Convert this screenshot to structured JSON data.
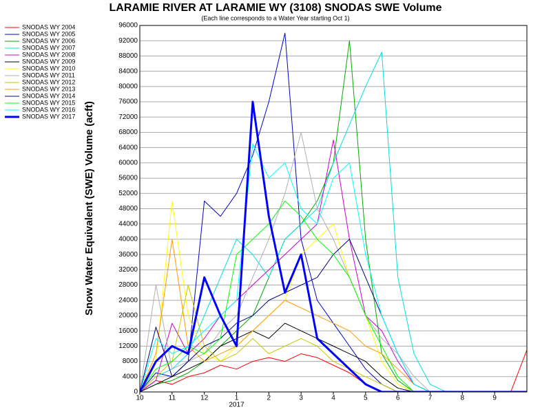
{
  "chart_data": {
    "type": "line",
    "title": "LARAMIE RIVER AT LARAMIE WY (3108) SNODAS SWE Volume",
    "subtitle": "(Each line corresponds to a Water Year starting Oct 1)",
    "y_label": "Snow Water Equivalent (SWE) Volume (acft)",
    "x_year_label": "2017",
    "grid": true,
    "xlim": [
      0,
      12
    ],
    "ylim": [
      0,
      96000
    ],
    "xticks": [
      {
        "value": 0,
        "label": "10"
      },
      {
        "value": 1,
        "label": "11"
      },
      {
        "value": 2,
        "label": "12"
      },
      {
        "value": 3,
        "label": "1"
      },
      {
        "value": 4,
        "label": "2"
      },
      {
        "value": 5,
        "label": "3"
      },
      {
        "value": 6,
        "label": "4"
      },
      {
        "value": 7,
        "label": "5"
      },
      {
        "value": 8,
        "label": "6"
      },
      {
        "value": 9,
        "label": "7"
      },
      {
        "value": 10,
        "label": "8"
      },
      {
        "value": 11,
        "label": "9"
      }
    ],
    "yticks": [
      0,
      4000,
      8000,
      12000,
      16000,
      20000,
      24000,
      28000,
      32000,
      36000,
      40000,
      44000,
      48000,
      52000,
      56000,
      60000,
      64000,
      68000,
      72000,
      76000,
      80000,
      84000,
      88000,
      92000,
      96000
    ],
    "x": [
      0,
      0.5,
      1,
      1.5,
      2,
      2.5,
      3,
      3.5,
      4,
      4.5,
      5,
      5.5,
      6,
      6.5,
      7,
      7.5,
      8,
      8.5,
      9,
      9.5,
      10,
      10.5,
      11,
      11.5,
      12
    ],
    "series": [
      {
        "name": "SNODAS WY 2004",
        "color": "#ff0000",
        "width": 1,
        "values": [
          0,
          3000,
          2000,
          4000,
          5000,
          7000,
          6000,
          8000,
          9000,
          8000,
          10000,
          9000,
          7000,
          5000,
          2000,
          0,
          0,
          0,
          0,
          0,
          0,
          0,
          0,
          0,
          11000
        ]
      },
      {
        "name": "SNODAS WY 2005",
        "color": "#0000cc",
        "width": 1,
        "values": [
          0,
          5000,
          4000,
          8000,
          50000,
          46000,
          52000,
          62000,
          76000,
          94000,
          40000,
          24000,
          18000,
          12000,
          6000,
          2000,
          0,
          0,
          0,
          0,
          0,
          0,
          0,
          0,
          0
        ]
      },
      {
        "name": "SNODAS WY 2006",
        "color": "#00aa00",
        "width": 1,
        "values": [
          0,
          2000,
          3000,
          5000,
          8000,
          12000,
          16000,
          20000,
          30000,
          40000,
          44000,
          50000,
          60000,
          92000,
          40000,
          10000,
          3000,
          0,
          0,
          0,
          0,
          0,
          0,
          0,
          0
        ]
      },
      {
        "name": "SNODAS WY 2007",
        "color": "#00e0e0",
        "width": 1,
        "values": [
          0,
          4000,
          6000,
          10000,
          20000,
          30000,
          40000,
          36000,
          30000,
          40000,
          44000,
          48000,
          60000,
          70000,
          80000,
          89000,
          30000,
          10000,
          2000,
          0,
          0,
          0,
          0,
          0,
          0
        ]
      },
      {
        "name": "SNODAS WY 2008",
        "color": "#cc00cc",
        "width": 1,
        "values": [
          0,
          3000,
          18000,
          10000,
          14000,
          20000,
          24000,
          28000,
          32000,
          36000,
          40000,
          44000,
          66000,
          40000,
          20000,
          16000,
          8000,
          2000,
          0,
          0,
          0,
          0,
          0,
          0,
          0
        ]
      },
      {
        "name": "SNODAS WY 2009",
        "color": "#000000",
        "width": 1,
        "values": [
          0,
          2000,
          4000,
          6000,
          8000,
          12000,
          14000,
          16000,
          14000,
          18000,
          16000,
          14000,
          12000,
          10000,
          8000,
          4000,
          1000,
          0,
          0,
          0,
          0,
          0,
          0,
          0,
          0
        ]
      },
      {
        "name": "SNODAS WY 2010",
        "color": "#ffff00",
        "width": 1,
        "values": [
          0,
          8000,
          50000,
          20000,
          10000,
          8000,
          12000,
          16000,
          20000,
          24000,
          36000,
          40000,
          44000,
          30000,
          20000,
          8000,
          2000,
          0,
          0,
          0,
          0,
          0,
          0,
          0,
          0
        ]
      },
      {
        "name": "SNODAS WY 2011",
        "color": "#b0b0b0",
        "width": 1,
        "values": [
          0,
          28000,
          6000,
          8000,
          10000,
          16000,
          20000,
          30000,
          40000,
          52000,
          68000,
          48000,
          40000,
          30000,
          20000,
          14000,
          10000,
          4000,
          0,
          0,
          0,
          0,
          0,
          0,
          0
        ]
      },
      {
        "name": "SNODAS WY 2012",
        "color": "#c8c800",
        "width": 1,
        "values": [
          0,
          4000,
          8000,
          28000,
          12000,
          8000,
          10000,
          14000,
          10000,
          12000,
          14000,
          12000,
          8000,
          6000,
          4000,
          2000,
          0,
          0,
          0,
          0,
          0,
          0,
          0,
          0,
          0
        ]
      },
      {
        "name": "SNODAS WY 2013",
        "color": "#ff9900",
        "width": 1,
        "values": [
          0,
          10000,
          40000,
          12000,
          8000,
          10000,
          12000,
          16000,
          20000,
          24000,
          22000,
          20000,
          18000,
          16000,
          12000,
          10000,
          6000,
          2000,
          0,
          0,
          0,
          0,
          0,
          0,
          0
        ]
      },
      {
        "name": "SNODAS WY 2014",
        "color": "#000080",
        "width": 1,
        "values": [
          0,
          17000,
          4000,
          8000,
          12000,
          14000,
          18000,
          20000,
          24000,
          26000,
          28000,
          30000,
          36000,
          40000,
          30000,
          20000,
          10000,
          2000,
          0,
          0,
          0,
          0,
          0,
          0,
          0
        ]
      },
      {
        "name": "SNODAS WY 2015",
        "color": "#00ff00",
        "width": 1,
        "values": [
          0,
          6000,
          8000,
          12000,
          10000,
          14000,
          36000,
          40000,
          44000,
          50000,
          46000,
          40000,
          36000,
          30000,
          20000,
          12000,
          4000,
          0,
          0,
          0,
          0,
          0,
          0,
          0,
          0
        ]
      },
      {
        "name": "SNODAS WY 2016",
        "color": "#00ffff",
        "width": 1,
        "values": [
          0,
          14000,
          10000,
          12000,
          16000,
          20000,
          24000,
          65000,
          56000,
          60000,
          48000,
          44000,
          56000,
          60000,
          36000,
          20000,
          10000,
          2000,
          0,
          0,
          0,
          0,
          0,
          0,
          0
        ]
      },
      {
        "name": "SNODAS WY 2017",
        "color": "#0000ff",
        "width": 3,
        "values": [
          0,
          8000,
          12000,
          10000,
          30000,
          20000,
          12000,
          76000,
          46000,
          26000,
          36000,
          14000,
          10000,
          6000,
          2000,
          0,
          0,
          0,
          0,
          0,
          0,
          0,
          0,
          0,
          0
        ]
      }
    ]
  }
}
